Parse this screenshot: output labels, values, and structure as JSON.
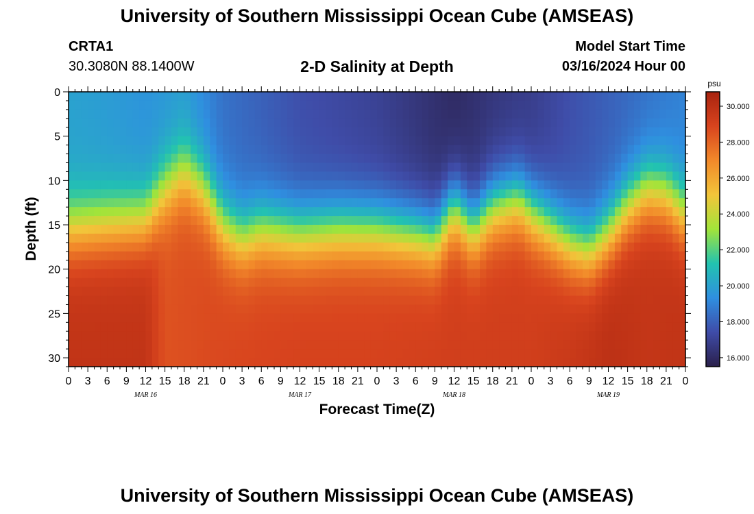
{
  "header": {
    "title": "University of Southern Mississippi Ocean Cube (AMSEAS)",
    "station_id": "CRTA1",
    "coordinates": "30.3080N  88.1400W",
    "subtitle": "2-D Salinity at Depth",
    "model_start_label": "Model Start Time",
    "model_start_value": "03/16/2024 Hour 00"
  },
  "footer": {
    "title": "University of Southern Mississippi Ocean Cube (AMSEAS)"
  },
  "colors": {
    "colormap": [
      "#2a1f4a",
      "#3f4ca8",
      "#2f8fe0",
      "#22c3b0",
      "#a2e43a",
      "#f2c53a",
      "#f2892a",
      "#d8441e",
      "#a8230f"
    ],
    "frame": "#000000"
  },
  "chart_data": {
    "type": "heatmap",
    "title": "2-D Salinity at Depth",
    "xlabel": "Forecast Time(Z)",
    "ylabel": "Depth (ft)",
    "xlim": [
      0,
      96
    ],
    "ylim": [
      31,
      0
    ],
    "x_ticks": [
      0,
      3,
      6,
      9,
      12,
      15,
      18,
      21,
      24,
      27,
      30,
      33,
      36,
      39,
      42,
      45,
      48,
      51,
      54,
      57,
      60,
      63,
      66,
      69,
      72,
      75,
      78,
      81,
      84,
      87,
      90,
      93,
      96
    ],
    "x_tick_labels": [
      "0",
      "3",
      "6",
      "9",
      "12",
      "15",
      "18",
      "21",
      "0",
      "3",
      "6",
      "9",
      "12",
      "15",
      "18",
      "21",
      "0",
      "3",
      "6",
      "9",
      "12",
      "15",
      "18",
      "21",
      "0",
      "3",
      "6",
      "9",
      "12",
      "15",
      "18",
      "21",
      "0"
    ],
    "y_ticks": [
      0,
      5,
      10,
      15,
      20,
      25,
      30
    ],
    "y_tick_labels": [
      "0",
      "5",
      "10",
      "15",
      "20",
      "25",
      "30"
    ],
    "day_labels": [
      {
        "x": 12,
        "label": "MAR 16"
      },
      {
        "x": 36,
        "label": "MAR 17"
      },
      {
        "x": 60,
        "label": "MAR 18"
      },
      {
        "x": 84,
        "label": "MAR 19"
      }
    ],
    "colorbar": {
      "unit": "psu",
      "vmin": 15.5,
      "vmax": 30.8,
      "ticks": [
        16,
        18,
        20,
        22,
        24,
        26,
        28,
        30
      ],
      "tick_labels": [
        "16.000",
        "18.000",
        "20.000",
        "22.000",
        "24.000",
        "26.000",
        "28.000",
        "30.000"
      ]
    },
    "halocline_depth_ft": {
      "hours": [
        0,
        6,
        12,
        15,
        18,
        21,
        24,
        27,
        30,
        36,
        42,
        48,
        54,
        57,
        60,
        63,
        66,
        70,
        72,
        78,
        81,
        84,
        87,
        90,
        93,
        96
      ],
      "values": [
        15.5,
        15.0,
        14.5,
        11.0,
        9.0,
        11.0,
        15.0,
        16.5,
        15.5,
        16.0,
        15.5,
        15.5,
        16.0,
        16.5,
        13.0,
        15.5,
        13.0,
        12.0,
        13.5,
        17.0,
        18.0,
        16.0,
        13.0,
        11.0,
        11.5,
        14.0
      ]
    },
    "surface_salinity": {
      "hours": [
        0,
        6,
        12,
        18,
        24,
        36,
        48,
        54,
        60,
        66,
        72,
        78,
        84,
        90,
        96
      ],
      "values": [
        20.0,
        19.8,
        19.5,
        19.8,
        18.5,
        17.5,
        17.0,
        16.5,
        16.0,
        16.5,
        16.8,
        17.5,
        18.0,
        18.5,
        19.0
      ]
    },
    "deep_salinity": {
      "hours": [
        0,
        12,
        15,
        18,
        24,
        36,
        48,
        60,
        72,
        78,
        84,
        90,
        96
      ],
      "values": [
        29.8,
        29.8,
        28.5,
        28.6,
        28.8,
        29.0,
        29.0,
        29.2,
        29.2,
        29.5,
        30.0,
        29.7,
        29.8
      ]
    }
  }
}
